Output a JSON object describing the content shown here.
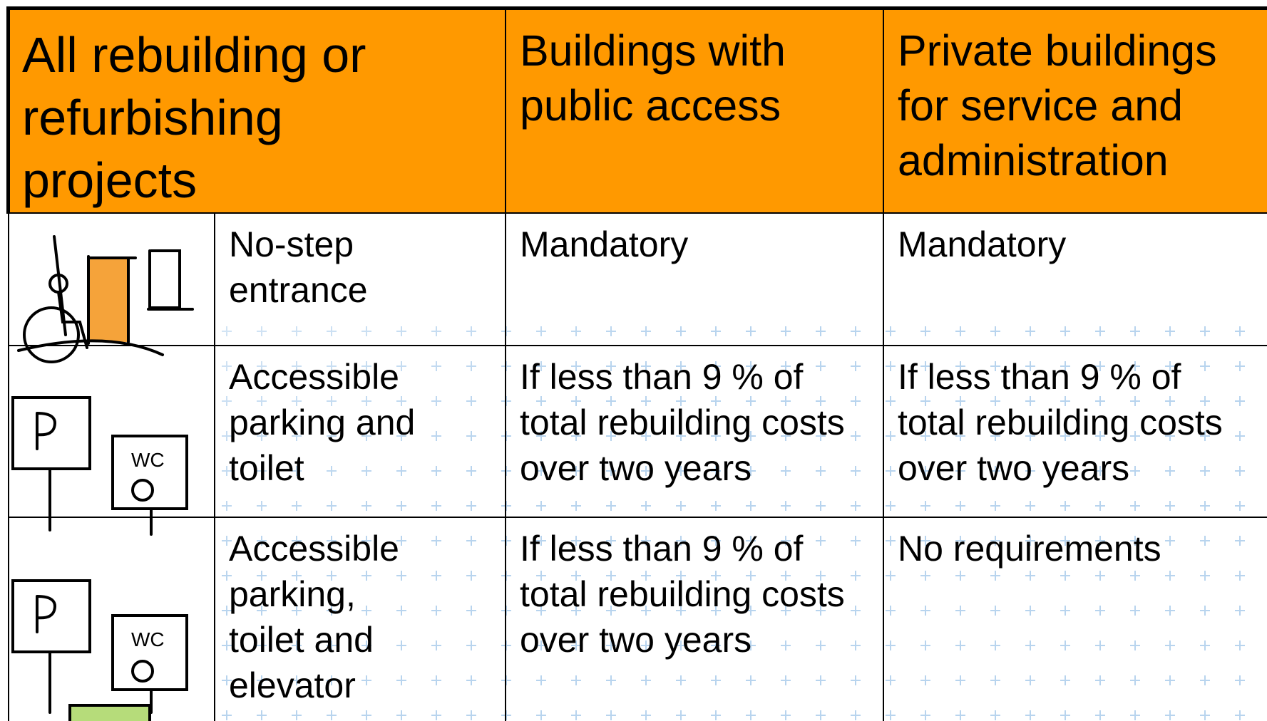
{
  "table": {
    "header": [
      "All rebuilding or refurbishing projects",
      "Buildings with public access",
      "Private buildings for service and administration"
    ],
    "rows": [
      [
        "No-step entrance",
        "Mandatory",
        "Mandatory"
      ],
      [
        "Accessible parking and toilet",
        "If less than 9 % of total rebuilding costs over two years",
        "If less than 9 % of total rebuilding costs over two years"
      ],
      [
        "Accessible parking, toilet and elevator",
        "If less than 9 % of total rebuilding costs over two years",
        "No requirements"
      ]
    ]
  }
}
